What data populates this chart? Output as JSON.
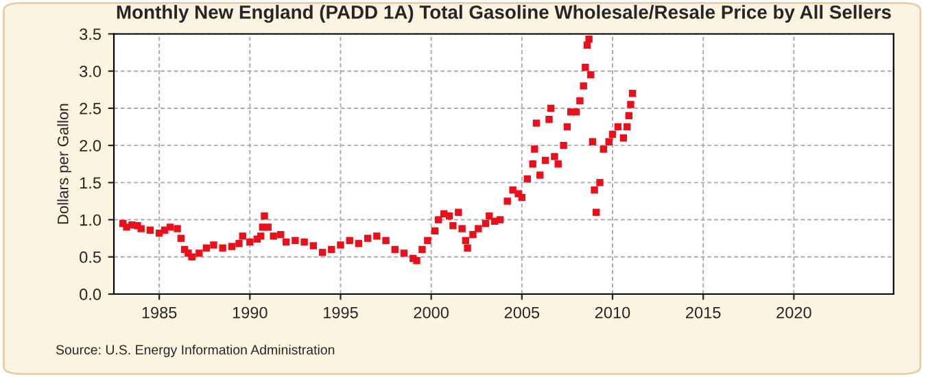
{
  "chart_data": {
    "type": "scatter",
    "title": "Monthly New England (PADD 1A) Total Gasoline Wholesale/Resale Price by All Sellers",
    "ylabel": "Dollars per Gallon",
    "annotations": [
      "Source: U.S. Energy Information Administration"
    ],
    "x": [
      1983.0,
      1983.2,
      1983.5,
      1983.8,
      1984.0,
      1984.5,
      1985.0,
      1985.3,
      1985.6,
      1986.0,
      1986.2,
      1986.4,
      1986.6,
      1986.8,
      1987.2,
      1987.6,
      1988.0,
      1988.5,
      1989.0,
      1989.4,
      1989.6,
      1990.0,
      1990.4,
      1990.6,
      1990.7,
      1990.8,
      1991.0,
      1991.3,
      1991.7,
      1992.0,
      1992.5,
      1993.0,
      1993.5,
      1994.0,
      1994.5,
      1995.0,
      1995.5,
      1996.0,
      1996.5,
      1997.0,
      1997.5,
      1998.0,
      1998.5,
      1999.0,
      1999.2,
      1999.5,
      1999.8,
      2000.2,
      2000.4,
      2000.7,
      2001.0,
      2001.2,
      2001.5,
      2001.7,
      2001.9,
      2002.0,
      2002.3,
      2002.6,
      2003.0,
      2003.2,
      2003.5,
      2003.8,
      2004.2,
      2004.5,
      2004.8,
      2005.0,
      2005.3,
      2005.6,
      2005.7,
      2005.8,
      2006.0,
      2006.3,
      2006.5,
      2006.6,
      2006.8,
      2007.0,
      2007.3,
      2007.5,
      2007.7,
      2008.0,
      2008.2,
      2008.4,
      2008.5,
      2008.6,
      2008.7,
      2008.8,
      2008.9,
      2009.0,
      2009.1,
      2009.3,
      2009.5,
      2009.8,
      2010.0,
      2010.3,
      2010.6,
      2010.8,
      2010.9,
      2011.0,
      2011.1
    ],
    "series": [
      {
        "color": "#e8101a",
        "values": [
          0.95,
          0.9,
          0.93,
          0.92,
          0.88,
          0.86,
          0.82,
          0.86,
          0.9,
          0.88,
          0.75,
          0.6,
          0.55,
          0.5,
          0.55,
          0.62,
          0.66,
          0.62,
          0.64,
          0.68,
          0.78,
          0.7,
          0.74,
          0.78,
          0.9,
          1.05,
          0.9,
          0.78,
          0.8,
          0.7,
          0.72,
          0.7,
          0.65,
          0.56,
          0.6,
          0.66,
          0.72,
          0.68,
          0.75,
          0.78,
          0.72,
          0.6,
          0.55,
          0.48,
          0.45,
          0.6,
          0.72,
          0.85,
          1.0,
          1.08,
          1.05,
          0.92,
          1.1,
          0.88,
          0.72,
          0.62,
          0.8,
          0.88,
          0.95,
          1.05,
          0.98,
          1.0,
          1.25,
          1.4,
          1.35,
          1.3,
          1.55,
          1.75,
          1.95,
          2.3,
          1.6,
          1.8,
          2.35,
          2.5,
          1.85,
          1.75,
          2.0,
          2.25,
          2.45,
          2.45,
          2.6,
          2.8,
          3.05,
          3.35,
          3.43,
          2.95,
          2.05,
          1.4,
          1.1,
          1.5,
          1.95,
          2.05,
          2.15,
          2.25,
          2.1,
          2.25,
          2.4,
          2.55,
          2.7
        ]
      }
    ],
    "xlim": [
      1982.5,
      2025.5
    ],
    "xticks": [
      1985,
      1990,
      1995,
      2000,
      2005,
      2010,
      2015,
      2020
    ],
    "ylim": [
      0,
      3.5
    ],
    "yticks": [
      {
        "value": 0,
        "label": "0.0"
      },
      {
        "value": 0.5,
        "label": "0.5"
      },
      {
        "value": 1,
        "label": "1.0"
      },
      {
        "value": 1.5,
        "label": "1.5"
      },
      {
        "value": 2,
        "label": "2.0"
      },
      {
        "value": 2.5,
        "label": "2.5"
      },
      {
        "value": 3,
        "label": "3.0"
      },
      {
        "value": 3.5,
        "label": "3.5"
      }
    ],
    "grid": true,
    "marker": "square"
  }
}
